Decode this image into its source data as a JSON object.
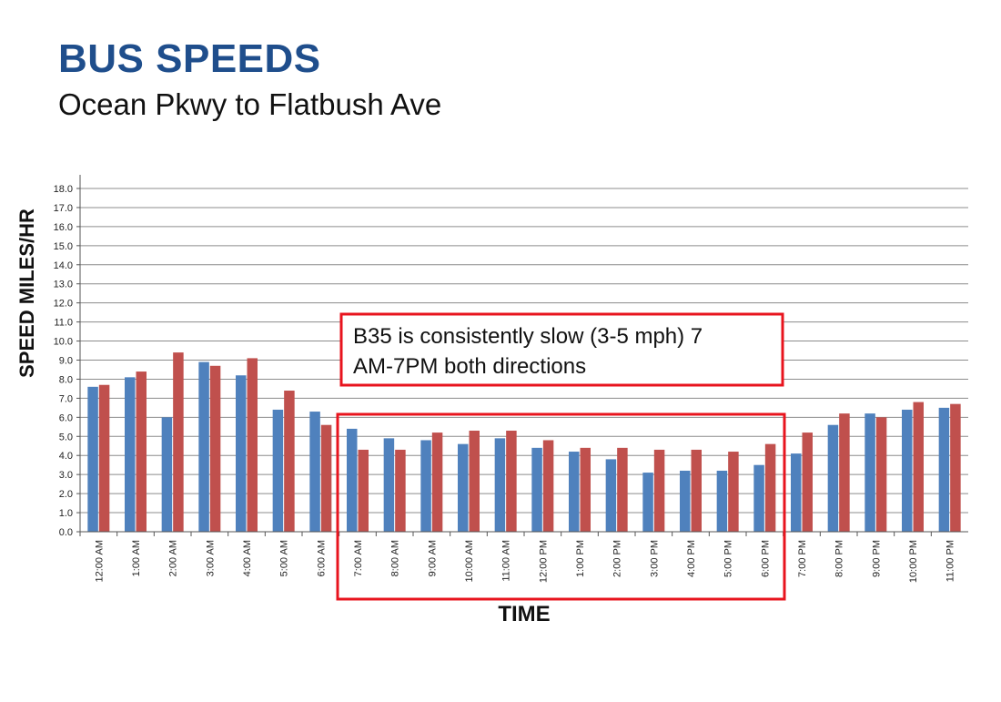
{
  "header": {
    "title": "BUS SPEEDS",
    "subtitle": "Ocean Pkwy to Flatbush Ave"
  },
  "colors": {
    "title": "#1f4e8c",
    "series_blue": "#4f81bd",
    "series_red": "#c0504d",
    "highlight_border": "#e8141e"
  },
  "callout": {
    "line1": "B35 is consistently slow (3-5 mph) 7",
    "line2": "AM-7PM both directions"
  },
  "chart_data": {
    "type": "bar",
    "xlabel": "TIME",
    "ylabel": "SPEED MILES/HR",
    "ylim": [
      0,
      18
    ],
    "y_ticks": [
      "0.0",
      "1.0",
      "2.0",
      "3.0",
      "4.0",
      "5.0",
      "6.0",
      "7.0",
      "8.0",
      "9.0",
      "10.0",
      "11.0",
      "12.0",
      "13.0",
      "14.0",
      "15.0",
      "16.0",
      "17.0",
      "18.0"
    ],
    "grid": true,
    "categories": [
      "12:00 AM",
      "1:00 AM",
      "2:00 AM",
      "3:00 AM",
      "4:00 AM",
      "5:00 AM",
      "6:00 AM",
      "7:00 AM",
      "8:00 AM",
      "9:00 AM",
      "10:00 AM",
      "11:00 AM",
      "12:00 PM",
      "1:00 PM",
      "2:00 PM",
      "3:00 PM",
      "4:00 PM",
      "5:00 PM",
      "6:00 PM",
      "7:00 PM",
      "8:00 PM",
      "9:00 PM",
      "10:00 PM",
      "11:00 PM"
    ],
    "series": [
      {
        "color": "#4f81bd",
        "values": [
          7.6,
          8.1,
          6.0,
          8.9,
          8.2,
          6.4,
          6.3,
          5.4,
          4.9,
          4.8,
          4.6,
          4.9,
          4.4,
          4.2,
          3.8,
          3.1,
          3.2,
          3.2,
          3.5,
          4.1,
          5.6,
          6.2,
          6.4,
          6.5
        ]
      },
      {
        "color": "#c0504d",
        "values": [
          7.7,
          8.4,
          9.4,
          8.7,
          9.1,
          7.4,
          5.6,
          4.3,
          4.3,
          5.2,
          5.3,
          5.3,
          4.8,
          4.4,
          4.4,
          4.3,
          4.3,
          4.2,
          4.6,
          5.2,
          6.2,
          6.0,
          6.8,
          6.7
        ]
      }
    ]
  }
}
